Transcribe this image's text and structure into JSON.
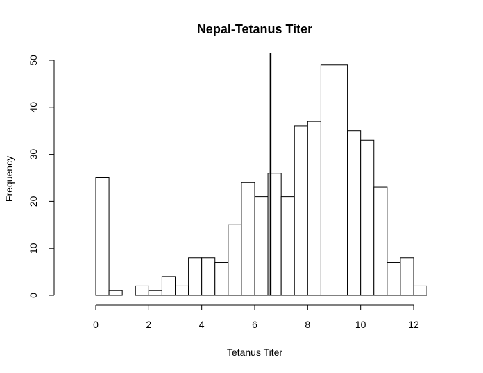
{
  "chart_data": {
    "type": "bar",
    "title": "Nepal-Tetanus Titer",
    "xlabel": "Tetanus Titer",
    "ylabel": "Frequency",
    "bin_width": 0.5,
    "bin_starts": [
      0,
      0.5,
      1,
      1.5,
      2,
      2.5,
      3,
      3.5,
      4,
      4.5,
      5,
      5.5,
      6,
      6.5,
      7,
      7.5,
      8,
      8.5,
      9,
      9.5,
      10,
      10.5,
      11,
      11.5,
      12
    ],
    "values": [
      25,
      1,
      0,
      2,
      1,
      4,
      2,
      8,
      8,
      7,
      15,
      24,
      21,
      26,
      21,
      36,
      37,
      49,
      49,
      35,
      33,
      23,
      7,
      8,
      2
    ],
    "xlim": [
      0,
      12.5
    ],
    "ylim": [
      0,
      50
    ],
    "x_ticks": [
      "0",
      "2",
      "4",
      "6",
      "8",
      "10",
      "12"
    ],
    "y_ticks": [
      "0",
      "10",
      "20",
      "30",
      "40",
      "50"
    ],
    "reference_line_x": 6.6,
    "grid": false,
    "legend": "none"
  }
}
